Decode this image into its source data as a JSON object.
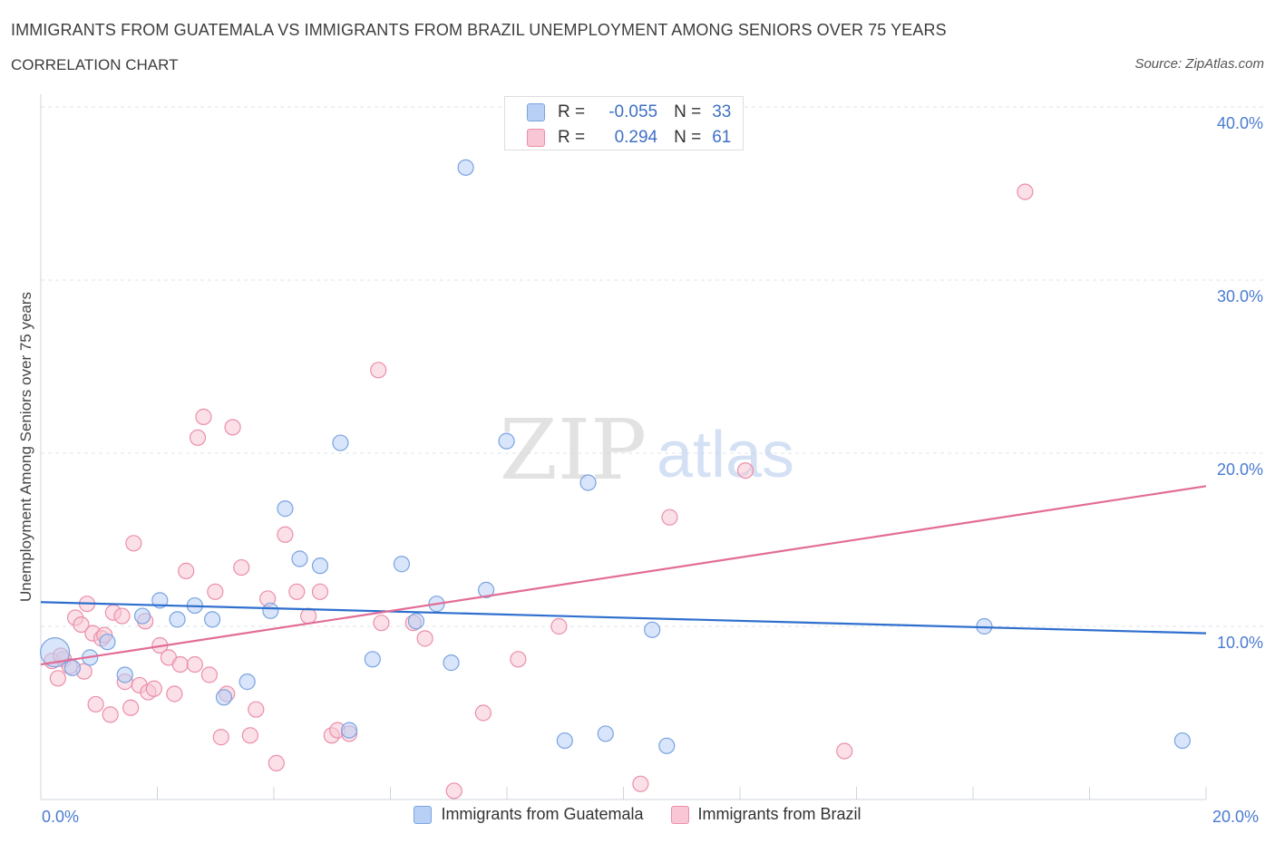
{
  "header": {
    "title": "IMMIGRANTS FROM GUATEMALA VS IMMIGRANTS FROM BRAZIL UNEMPLOYMENT AMONG SENIORS OVER 75 YEARS",
    "subtitle": "CORRELATION CHART",
    "source": "Source: ZipAtlas.com"
  },
  "watermark": {
    "zip": "ZIP",
    "atlas": "atlas"
  },
  "stats": {
    "r_label": "R =",
    "n_label": "N =",
    "rows": [
      {
        "r": "-0.055",
        "n": "33"
      },
      {
        "r": "0.294",
        "n": "61"
      }
    ]
  },
  "colors": {
    "guatemala_fill": "#b8d0f5",
    "guatemala_stroke": "#7aa3e0",
    "guatemala_line": "#2f6fce",
    "brazil_fill": "#f8c6d4",
    "brazil_stroke": "#eb8eaa",
    "brazil_line": "#e26c96",
    "axis_text": "#4a7bd0",
    "grid": "#dfe3ea"
  },
  "chart_data": {
    "type": "scatter",
    "title": "IMMIGRANTS FROM GUATEMALA VS IMMIGRANTS FROM BRAZIL UNEMPLOYMENT AMONG SENIORS OVER 75 YEARS",
    "ylabel": "Unemployment Among Seniors over 75 years",
    "xlim": [
      0,
      20
    ],
    "ylim": [
      0,
      40
    ],
    "x_tick_labels": [
      "0.0%",
      "20.0%"
    ],
    "y_ticks": [
      {
        "value": 10,
        "label": "10.0%"
      },
      {
        "value": 20,
        "label": "20.0%"
      },
      {
        "value": 30,
        "label": "30.0%"
      },
      {
        "value": 40,
        "label": "40.0%"
      }
    ],
    "grid": true,
    "legend_position": "bottom-center",
    "series": [
      {
        "name": "Immigrants from Guatemala",
        "regression": {
          "x": [
            0,
            20
          ],
          "y": [
            11.4,
            9.6
          ]
        },
        "points": [
          {
            "x": 0.15,
            "y": 8.5,
            "big": true
          },
          {
            "x": 0.45,
            "y": 7.6
          },
          {
            "x": 0.75,
            "y": 8.2
          },
          {
            "x": 1.05,
            "y": 9.1
          },
          {
            "x": 1.35,
            "y": 7.2
          },
          {
            "x": 1.65,
            "y": 10.6
          },
          {
            "x": 1.95,
            "y": 11.5
          },
          {
            "x": 2.25,
            "y": 10.4
          },
          {
            "x": 2.55,
            "y": 11.2
          },
          {
            "x": 2.85,
            "y": 10.4
          },
          {
            "x": 3.05,
            "y": 5.9
          },
          {
            "x": 3.45,
            "y": 6.8
          },
          {
            "x": 3.85,
            "y": 10.9
          },
          {
            "x": 4.1,
            "y": 16.8
          },
          {
            "x": 4.35,
            "y": 13.9
          },
          {
            "x": 4.7,
            "y": 13.5
          },
          {
            "x": 5.05,
            "y": 20.6
          },
          {
            "x": 5.2,
            "y": 4.0
          },
          {
            "x": 5.6,
            "y": 8.1
          },
          {
            "x": 6.1,
            "y": 13.6
          },
          {
            "x": 6.35,
            "y": 10.3
          },
          {
            "x": 6.7,
            "y": 11.3
          },
          {
            "x": 6.95,
            "y": 7.9
          },
          {
            "x": 7.2,
            "y": 36.5
          },
          {
            "x": 7.55,
            "y": 12.1
          },
          {
            "x": 7.9,
            "y": 20.7
          },
          {
            "x": 8.9,
            "y": 3.4
          },
          {
            "x": 9.3,
            "y": 18.3
          },
          {
            "x": 9.6,
            "y": 3.8
          },
          {
            "x": 10.4,
            "y": 9.8
          },
          {
            "x": 10.65,
            "y": 3.1
          },
          {
            "x": 16.1,
            "y": 10.0
          },
          {
            "x": 19.5,
            "y": 3.4
          }
        ]
      },
      {
        "name": "Immigrants from Brazil",
        "regression": {
          "x": [
            0,
            20
          ],
          "y": [
            7.8,
            18.1
          ]
        },
        "points": [
          {
            "x": 0.1,
            "y": 8.0
          },
          {
            "x": 0.2,
            "y": 7.0
          },
          {
            "x": 0.3,
            "y": 8.1
          },
          {
            "x": 0.4,
            "y": 7.7
          },
          {
            "x": 0.5,
            "y": 10.5
          },
          {
            "x": 0.6,
            "y": 10.1
          },
          {
            "x": 0.65,
            "y": 7.4
          },
          {
            "x": 0.7,
            "y": 11.3
          },
          {
            "x": 0.8,
            "y": 9.6
          },
          {
            "x": 0.85,
            "y": 5.5
          },
          {
            "x": 0.95,
            "y": 9.3
          },
          {
            "x": 1.0,
            "y": 9.5
          },
          {
            "x": 1.1,
            "y": 4.9
          },
          {
            "x": 1.15,
            "y": 10.8
          },
          {
            "x": 1.3,
            "y": 10.6
          },
          {
            "x": 1.35,
            "y": 6.8
          },
          {
            "x": 1.45,
            "y": 5.3
          },
          {
            "x": 1.5,
            "y": 14.8
          },
          {
            "x": 1.6,
            "y": 6.6
          },
          {
            "x": 1.7,
            "y": 10.3
          },
          {
            "x": 1.75,
            "y": 6.2
          },
          {
            "x": 1.85,
            "y": 6.4
          },
          {
            "x": 1.95,
            "y": 8.9
          },
          {
            "x": 2.1,
            "y": 8.2
          },
          {
            "x": 2.2,
            "y": 6.1
          },
          {
            "x": 2.3,
            "y": 7.8
          },
          {
            "x": 2.4,
            "y": 13.2
          },
          {
            "x": 2.55,
            "y": 7.8
          },
          {
            "x": 2.6,
            "y": 20.9
          },
          {
            "x": 2.7,
            "y": 22.1
          },
          {
            "x": 2.8,
            "y": 7.2
          },
          {
            "x": 2.9,
            "y": 12.0
          },
          {
            "x": 3.0,
            "y": 3.6
          },
          {
            "x": 3.1,
            "y": 6.1
          },
          {
            "x": 3.2,
            "y": 21.5
          },
          {
            "x": 3.35,
            "y": 13.4
          },
          {
            "x": 3.5,
            "y": 3.7
          },
          {
            "x": 3.6,
            "y": 5.2
          },
          {
            "x": 3.8,
            "y": 11.6
          },
          {
            "x": 3.95,
            "y": 2.1
          },
          {
            "x": 4.1,
            "y": 15.3
          },
          {
            "x": 4.3,
            "y": 12.0
          },
          {
            "x": 4.5,
            "y": 10.6
          },
          {
            "x": 4.7,
            "y": 12.0
          },
          {
            "x": 4.9,
            "y": 3.7
          },
          {
            "x": 5.0,
            "y": 4.0
          },
          {
            "x": 5.2,
            "y": 3.8
          },
          {
            "x": 5.7,
            "y": 24.8
          },
          {
            "x": 5.75,
            "y": 10.2
          },
          {
            "x": 6.3,
            "y": 10.2
          },
          {
            "x": 6.5,
            "y": 9.3
          },
          {
            "x": 7.0,
            "y": 0.5
          },
          {
            "x": 7.5,
            "y": 5.0
          },
          {
            "x": 8.1,
            "y": 8.1
          },
          {
            "x": 8.8,
            "y": 10.0
          },
          {
            "x": 10.2,
            "y": 0.9
          },
          {
            "x": 10.7,
            "y": 16.3
          },
          {
            "x": 12.0,
            "y": 19.0
          },
          {
            "x": 13.7,
            "y": 2.8
          },
          {
            "x": 16.8,
            "y": 35.1
          },
          {
            "x": 0.25,
            "y": 8.3
          }
        ]
      }
    ]
  }
}
